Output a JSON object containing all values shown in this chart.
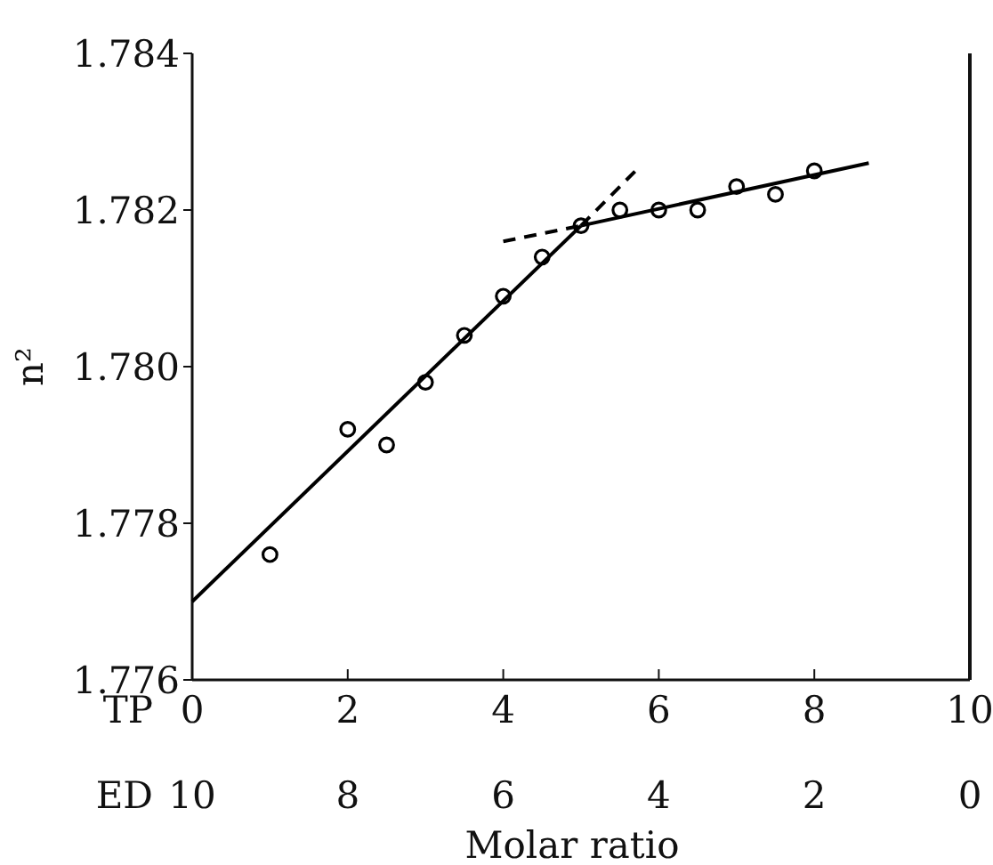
{
  "chart_data": {
    "type": "scatter",
    "ylabel": "n²",
    "xlabel": "TP",
    "x2label": "ED",
    "annotations": [
      "Molar ratio"
    ],
    "xlim": [
      0,
      10
    ],
    "xticks": [
      0,
      2,
      4,
      6,
      8,
      10
    ],
    "x2lim": [
      10,
      0
    ],
    "x2ticks": [
      10,
      8,
      6,
      4,
      2,
      0
    ],
    "ylim": [
      1.776,
      1.784
    ],
    "yticks": [
      1.776,
      1.778,
      {
        "value": 1.78,
        "label": "1.780"
      },
      1.782,
      1.784
    ],
    "grid": false,
    "marker": "circle",
    "series": [
      {
        "color": "#000000",
        "x": [
          1,
          2,
          2.5,
          3,
          3.5,
          4,
          4.5,
          5,
          5.5,
          6,
          6.5,
          7,
          7.5,
          8
        ],
        "values": [
          1.7776,
          1.7792,
          1.779,
          1.7798,
          1.7804,
          1.7809,
          1.7814,
          1.7818,
          1.782,
          1.782,
          1.782,
          1.7823,
          1.7822,
          1.7825
        ]
      },
      {
        "type": "line",
        "color": "#000000",
        "line_style": "solid",
        "marker": "none",
        "x": [
          0,
          5
        ],
        "values": [
          1.777,
          1.7818
        ]
      },
      {
        "type": "line",
        "color": "#000000",
        "line_style": "solid",
        "marker": "none",
        "x": [
          5,
          8.7
        ],
        "values": [
          1.7818,
          1.7826
        ]
      },
      {
        "type": "line",
        "color": "#000000",
        "line_style": "dashed",
        "marker": "none",
        "x": [
          5,
          5.7
        ],
        "values": [
          1.7818,
          1.7825
        ]
      },
      {
        "type": "line",
        "color": "#000000",
        "line_style": "dashed",
        "marker": "none",
        "x": [
          4,
          5
        ],
        "values": [
          1.7816,
          1.7818
        ]
      }
    ]
  }
}
